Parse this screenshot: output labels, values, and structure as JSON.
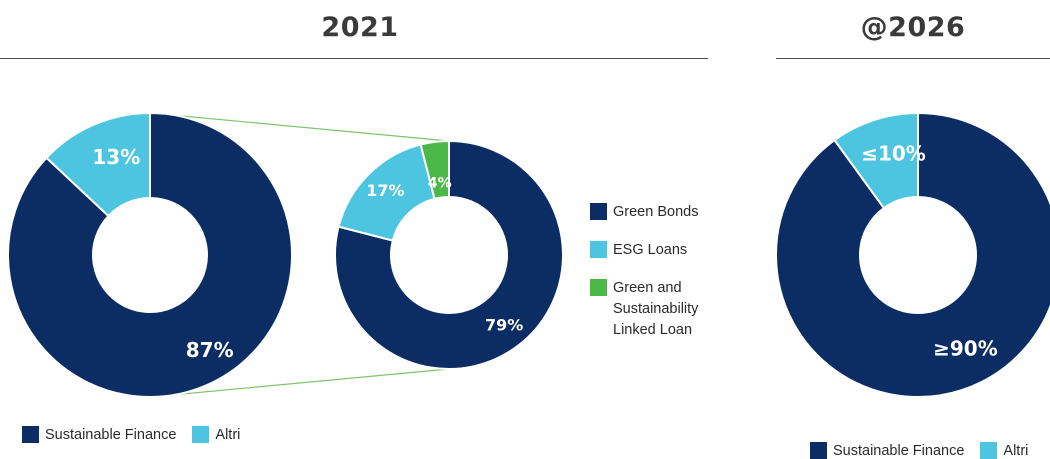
{
  "sections": {
    "left_title": "2021",
    "right_title": "@2026"
  },
  "colors": {
    "navy": "#0b2d63",
    "cyan": "#4dc5e1",
    "green": "#4cb848",
    "connector": "#7cc46a"
  },
  "chart_data": [
    {
      "type": "pie",
      "title": "2021",
      "slices": [
        {
          "name": "Sustainable Finance",
          "value": 87,
          "label": "87%",
          "color": "#0b2d63"
        },
        {
          "name": "Altri",
          "value": 13,
          "label": "13%",
          "color": "#4dc5e1"
        }
      ],
      "legend": [
        "Sustainable Finance",
        "Altri"
      ]
    },
    {
      "type": "pie",
      "slices": [
        {
          "name": "Green Bonds",
          "value": 79,
          "label": "79%",
          "color": "#0b2d63"
        },
        {
          "name": "ESG Loans",
          "value": 17,
          "label": "17%",
          "color": "#4dc5e1"
        },
        {
          "name": "Green and Sustainability Linked Loan",
          "value": 4,
          "label": "4%",
          "color": "#4cb848"
        }
      ],
      "legend": [
        "Green Bonds",
        "ESG Loans",
        "Green and Sustainability Linked Loan"
      ]
    },
    {
      "type": "pie",
      "title": "@2026",
      "slices": [
        {
          "name": "Sustainable Finance",
          "value": 90,
          "label": "≥90%",
          "color": "#0b2d63"
        },
        {
          "name": "Altri",
          "value": 10,
          "label": "≤10%",
          "color": "#4dc5e1"
        }
      ],
      "legend": [
        "Sustainable Finance",
        "Altri"
      ]
    }
  ],
  "legends": {
    "left": [
      {
        "label": "Sustainable Finance",
        "color": "#0b2d63"
      },
      {
        "label": "Altri",
        "color": "#4dc5e1"
      }
    ],
    "middle": [
      {
        "label": "Green Bonds",
        "color": "#0b2d63"
      },
      {
        "label": "ESG Loans",
        "color": "#4dc5e1"
      },
      {
        "label": "Green and Sustainability Linked Loan",
        "color": "#4cb848"
      }
    ],
    "right": [
      {
        "label": "Sustainable Finance",
        "color": "#0b2d63"
      },
      {
        "label": "Altri",
        "color": "#4dc5e1"
      }
    ]
  }
}
